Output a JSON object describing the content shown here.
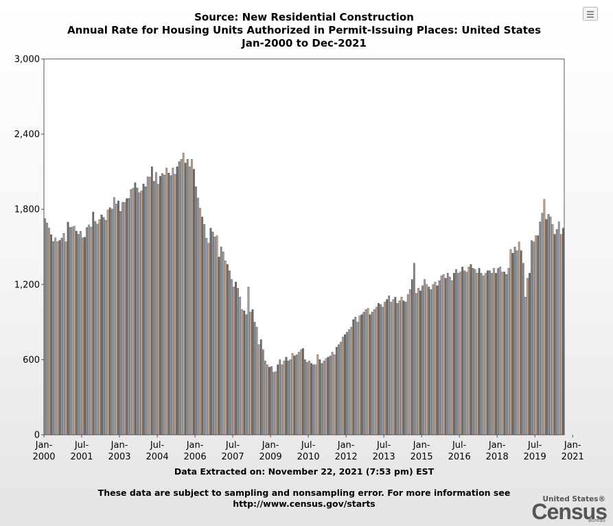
{
  "title": {
    "line1": "Source: New Residential Construction",
    "line2": "Annual Rate for Housing Units Authorized in Permit-Issuing Places: United States",
    "line3": "Jan-2000 to Dec-2021"
  },
  "menu_icon": "hamburger-menu-icon",
  "footer": {
    "extracted": "Data Extracted on: November 22, 2021 (7:53 pm) EST",
    "note": "These data are subject to sampling and nonsampling error. For more information see http://www.census.gov/starts"
  },
  "logo": {
    "line1": "United States®",
    "line2": "Census",
    "line3": "Bureau"
  },
  "chart_data": {
    "type": "bar",
    "start": "Jan-2000",
    "frequency": "monthly",
    "ylim": [
      0,
      3000
    ],
    "yticks": [
      0,
      600,
      1200,
      1800,
      2400,
      3000
    ],
    "ytick_labels": [
      "0",
      "600",
      "1,200",
      "1,800",
      "2,400",
      "3,000"
    ],
    "xtick_labels": [
      [
        "Jan-",
        "2000"
      ],
      [
        "Jul-",
        "2001"
      ],
      [
        "Jan-",
        "2003"
      ],
      [
        "Jul-",
        "2004"
      ],
      [
        "Jan-",
        "2006"
      ],
      [
        "Jul-",
        "2007"
      ],
      [
        "Jan-",
        "2009"
      ],
      [
        "Jul-",
        "2010"
      ],
      [
        "Jan-",
        "2012"
      ],
      [
        "Jul-",
        "2013"
      ],
      [
        "Jan-",
        "2015"
      ],
      [
        "Jul-",
        "2016"
      ],
      [
        "Jan-",
        "2018"
      ],
      [
        "Jul-",
        "2019"
      ],
      [
        "Jan-",
        "2021"
      ]
    ],
    "grid": false,
    "bar_colors": [
      "#8e8e8e",
      "#9aa0b0",
      "#c8a080",
      "#6c6c6c"
    ],
    "values": [
      1727,
      1692,
      1651,
      1597,
      1543,
      1572,
      1542,
      1552,
      1570,
      1608,
      1541,
      1698,
      1656,
      1659,
      1666,
      1626,
      1601,
      1625,
      1573,
      1577,
      1656,
      1676,
      1659,
      1779,
      1704,
      1683,
      1718,
      1756,
      1736,
      1713,
      1796,
      1813,
      1802,
      1895,
      1843,
      1867,
      1784,
      1856,
      1856,
      1886,
      1888,
      1959,
      1970,
      2012,
      1971,
      1933,
      1947,
      2002,
      1981,
      2060,
      2058,
      2140,
      2024,
      2094,
      2001,
      2064,
      2086,
      2074,
      2130,
      2090,
      2070,
      2130,
      2080,
      2140,
      2180,
      2200,
      2250,
      2170,
      2200,
      2140,
      2200,
      2120,
      1980,
      1890,
      1810,
      1740,
      1680,
      1570,
      1530,
      1650,
      1620,
      1580,
      1590,
      1420,
      1500,
      1460,
      1390,
      1360,
      1310,
      1240,
      1180,
      1220,
      1170,
      1100,
      1000,
      990,
      960,
      1180,
      980,
      1000,
      900,
      860,
      720,
      760,
      680,
      590,
      560,
      540,
      545,
      500,
      505,
      560,
      600,
      560,
      590,
      620,
      590,
      600,
      650,
      630,
      640,
      660,
      680,
      690,
      600,
      580,
      590,
      570,
      560,
      560,
      640,
      600,
      570,
      590,
      610,
      620,
      630,
      660,
      640,
      700,
      720,
      740,
      780,
      800,
      820,
      840,
      860,
      920,
      940,
      900,
      950,
      960,
      980,
      1000,
      1010,
      960,
      980,
      1000,
      1020,
      1050,
      1040,
      1020,
      1060,
      1080,
      1110,
      1060,
      1080,
      1100,
      1050,
      1070,
      1100,
      1070,
      1060,
      1120,
      1160,
      1240,
      1370,
      1130,
      1170,
      1150,
      1190,
      1240,
      1200,
      1180,
      1160,
      1200,
      1220,
      1190,
      1230,
      1270,
      1280,
      1250,
      1290,
      1260,
      1230,
      1290,
      1320,
      1290,
      1300,
      1340,
      1310,
      1300,
      1340,
      1360,
      1330,
      1320,
      1290,
      1330,
      1290,
      1270,
      1290,
      1310,
      1310,
      1290,
      1330,
      1290,
      1330,
      1340,
      1300,
      1300,
      1280,
      1330,
      1480,
      1450,
      1500,
      1470,
      1540,
      1470,
      1370,
      1100,
      1250,
      1290,
      1550,
      1540,
      1590,
      1590,
      1700,
      1770,
      1880,
      1720,
      1760,
      1740,
      1680,
      1600,
      1640,
      1700,
      1600,
      1650
    ]
  }
}
